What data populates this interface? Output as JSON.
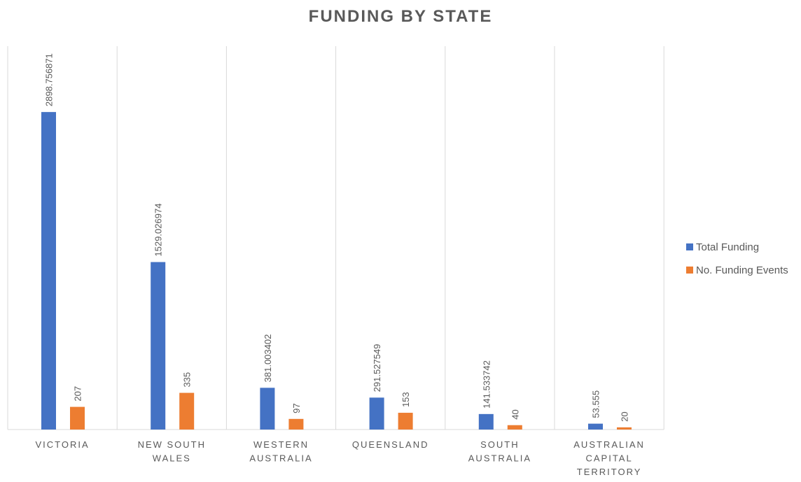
{
  "chart_data": {
    "type": "bar",
    "title": "FUNDING BY STATE",
    "categories": [
      [
        "VICTORIA"
      ],
      [
        "NEW SOUTH",
        "WALES"
      ],
      [
        "WESTERN",
        "AUSTRALIA"
      ],
      [
        "QUEENSLAND"
      ],
      [
        "SOUTH",
        "AUSTRALIA"
      ],
      [
        "AUSTRALIAN",
        "CAPITAL",
        "TERRITORY"
      ]
    ],
    "series": [
      {
        "name": "Total Funding",
        "color": "#4472C4",
        "values": [
          2898.756871,
          1529.026974,
          381.003402,
          291.527549,
          141.533742,
          53.555
        ],
        "labels": [
          "2898.756871",
          "1529.026974",
          "381.003402",
          "291.527549",
          "141.533742",
          "53.555"
        ]
      },
      {
        "name": "No. Funding Events",
        "color": "#ED7D31",
        "values": [
          207,
          335,
          97,
          153,
          40,
          20
        ],
        "labels": [
          "207",
          "335",
          "97",
          "153",
          "40",
          "20"
        ]
      }
    ],
    "xlabel": "",
    "ylabel": "",
    "ylim": [
      0,
      3500
    ],
    "grid": "vertical category separators",
    "legend": "right"
  }
}
